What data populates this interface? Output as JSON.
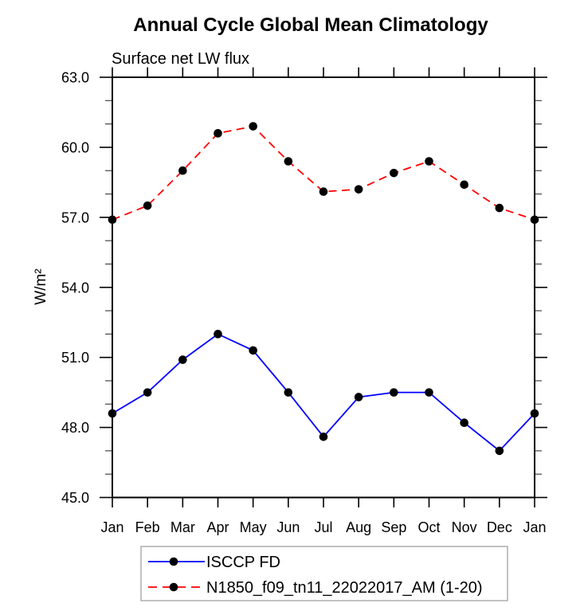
{
  "chart_data": {
    "type": "line",
    "title": "Annual Cycle Global Mean Climatology",
    "subtitle": "Surface net LW flux",
    "ylabel": "W/m²",
    "xlabel": "",
    "categories": [
      "Jan",
      "Feb",
      "Mar",
      "Apr",
      "May",
      "Jun",
      "Jul",
      "Aug",
      "Sep",
      "Oct",
      "Nov",
      "Dec",
      "Jan"
    ],
    "ylim": [
      45.0,
      63.0
    ],
    "y_major_step": 3.0,
    "y_minor_step": 1.0,
    "y_tick_labels": [
      "45.0",
      "48.0",
      "51.0",
      "54.0",
      "57.0",
      "60.0",
      "63.0"
    ],
    "grid": false,
    "legend_position": "bottom-left",
    "axis_color": "#000000",
    "legend_border_color": "#999999",
    "series": [
      {
        "name": "ISCCP FD",
        "color": "#0000ff",
        "line_style": "solid",
        "marker": "filled-circle",
        "marker_color": "#000000",
        "values": [
          48.6,
          49.5,
          50.9,
          52.0,
          51.3,
          49.5,
          47.6,
          49.3,
          49.5,
          49.5,
          48.2,
          47.0,
          48.6
        ]
      },
      {
        "name": "N1850_f09_tn11_22022017_AM (1-20)",
        "color": "#ff0000",
        "line_style": "dashed",
        "marker": "filled-circle",
        "marker_color": "#000000",
        "values": [
          56.9,
          57.5,
          59.0,
          60.6,
          60.9,
          59.4,
          58.1,
          58.2,
          58.9,
          59.4,
          58.4,
          57.4,
          56.9
        ]
      }
    ]
  }
}
